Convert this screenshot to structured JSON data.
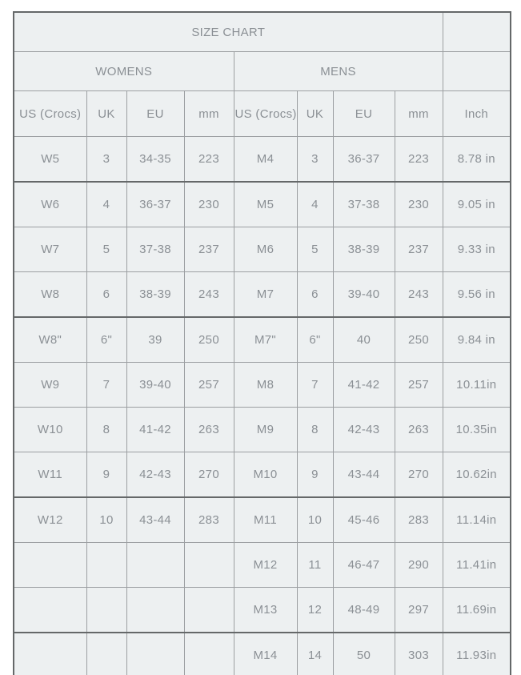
{
  "table": {
    "title": "SIZE CHART",
    "groups": {
      "womens": "WOMENS",
      "mens": "MENS"
    },
    "columns": [
      "US (Crocs)",
      "UK",
      "EU",
      "mm",
      "US (Crocs)",
      "UK",
      "EU",
      "mm",
      "Inch"
    ],
    "rows": [
      [
        "W5",
        "3",
        "34-35",
        "223",
        "M4",
        "3",
        "36-37",
        "223",
        "8.78 in"
      ],
      [
        "W6",
        "4",
        "36-37",
        "230",
        "M5",
        "4",
        "37-38",
        "230",
        "9.05 in"
      ],
      [
        "W7",
        "5",
        "37-38",
        "237",
        "M6",
        "5",
        "38-39",
        "237",
        "9.33 in"
      ],
      [
        "W8",
        "6",
        "38-39",
        "243",
        "M7",
        "6",
        "39-40",
        "243",
        "9.56 in"
      ],
      [
        "W8\"",
        "6\"",
        "39",
        "250",
        "M7\"",
        "6\"",
        "40",
        "250",
        "9.84 in"
      ],
      [
        "W9",
        "7",
        "39-40",
        "257",
        "M8",
        "7",
        "41-42",
        "257",
        "10.11in"
      ],
      [
        "W10",
        "8",
        "41-42",
        "263",
        "M9",
        "8",
        "42-43",
        "263",
        "10.35in"
      ],
      [
        "W11",
        "9",
        "42-43",
        "270",
        "M10",
        "9",
        "43-44",
        "270",
        "10.62in"
      ],
      [
        "W12",
        "10",
        "43-44",
        "283",
        "M11",
        "10",
        "45-46",
        "283",
        "11.14in"
      ],
      [
        "",
        "",
        "",
        "",
        "M12",
        "11",
        "46-47",
        "290",
        "11.41in"
      ],
      [
        "",
        "",
        "",
        "",
        "M13",
        "12",
        "48-49",
        "297",
        "11.69in"
      ],
      [
        "",
        "",
        "",
        "",
        "M14",
        "14",
        "50",
        "303",
        "11.93in"
      ]
    ]
  },
  "colors": {
    "cell_bg": "#edf0f1",
    "border_thin": "#9c9fa2",
    "border_thick": "#656869",
    "text_dark": "#4a4f54",
    "text_light": "#8b9095",
    "page_bg": "#ffffff"
  }
}
